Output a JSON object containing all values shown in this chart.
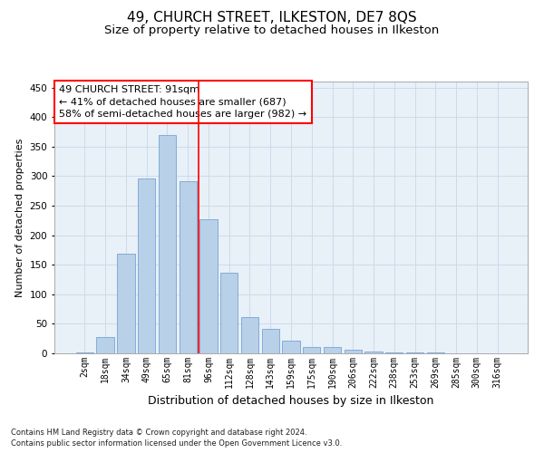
{
  "title1": "49, CHURCH STREET, ILKESTON, DE7 8QS",
  "title2": "Size of property relative to detached houses in Ilkeston",
  "xlabel": "Distribution of detached houses by size in Ilkeston",
  "ylabel": "Number of detached properties",
  "categories": [
    "2sqm",
    "18sqm",
    "34sqm",
    "49sqm",
    "65sqm",
    "81sqm",
    "96sqm",
    "112sqm",
    "128sqm",
    "143sqm",
    "159sqm",
    "175sqm",
    "190sqm",
    "206sqm",
    "222sqm",
    "238sqm",
    "253sqm",
    "269sqm",
    "285sqm",
    "300sqm",
    "316sqm"
  ],
  "values": [
    1,
    28,
    168,
    296,
    369,
    291,
    227,
    136,
    61,
    42,
    22,
    11,
    11,
    6,
    3,
    2,
    1,
    1,
    0,
    0,
    0
  ],
  "bar_color": "#b8d0e8",
  "bar_edge_color": "#6699cc",
  "grid_color": "#c8d8e8",
  "background_color": "#e8f0f8",
  "ylim": [
    0,
    460
  ],
  "yticks": [
    0,
    50,
    100,
    150,
    200,
    250,
    300,
    350,
    400,
    450
  ],
  "marker_label": "49 CHURCH STREET: 91sqm",
  "annotation_line1": "← 41% of detached houses are smaller (687)",
  "annotation_line2": "58% of semi-detached houses are larger (982) →",
  "footnote1": "Contains HM Land Registry data © Crown copyright and database right 2024.",
  "footnote2": "Contains public sector information licensed under the Open Government Licence v3.0.",
  "title1_fontsize": 11,
  "title2_fontsize": 9.5,
  "xlabel_fontsize": 9,
  "ylabel_fontsize": 8,
  "tick_fontsize": 7,
  "annotation_fontsize": 8,
  "footnote_fontsize": 6
}
